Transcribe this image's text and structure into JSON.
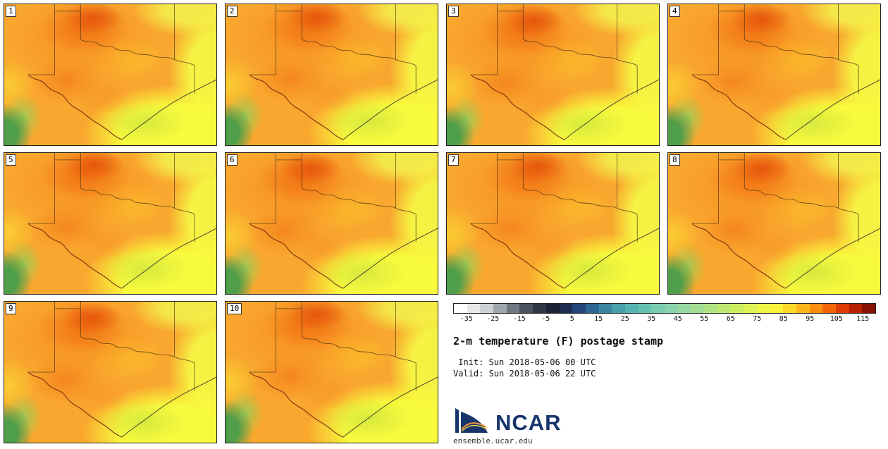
{
  "panels": [
    {
      "id": "1"
    },
    {
      "id": "2"
    },
    {
      "id": "3"
    },
    {
      "id": "4"
    },
    {
      "id": "5"
    },
    {
      "id": "6"
    },
    {
      "id": "7"
    },
    {
      "id": "8"
    },
    {
      "id": "9"
    },
    {
      "id": "10"
    }
  ],
  "legend": {
    "title": "2-m temperature (F) postage stamp",
    "init_line": " Init: Sun 2018-05-06 00 UTC",
    "valid_line": "Valid: Sun 2018-05-06 22 UTC",
    "logo_text": "NCAR",
    "site": "ensemble.ucar.edu"
  },
  "chart_data": {
    "type": "heatmap",
    "title": "2-m temperature (F) postage stamp",
    "init": "Sun 2018-05-06 00 UTC",
    "valid": "Sun 2018-05-06 22 UTC",
    "ensemble_members": [
      1,
      2,
      3,
      4,
      5,
      6,
      7,
      8,
      9,
      10
    ],
    "layout": {
      "grid": "4 columns x 3 rows, members 1-10, legend lower right",
      "legend_position": "bottom-right"
    },
    "colorbar": {
      "units": "F",
      "min": -40,
      "max": 120,
      "step": 5,
      "tick_labels": [
        -35,
        -25,
        -15,
        -5,
        5,
        15,
        25,
        35,
        45,
        55,
        65,
        75,
        85,
        95,
        105,
        115
      ],
      "colors": [
        "#ffffff",
        "#e8e8e8",
        "#cdd1d4",
        "#9fa6ad",
        "#6e7883",
        "#49535f",
        "#2e3744",
        "#1a2233",
        "#1d2d52",
        "#24477c",
        "#2e6694",
        "#3a86a2",
        "#47a0aa",
        "#55b2ae",
        "#66c0b0",
        "#78ccb0",
        "#8ad2ac",
        "#97d8a2",
        "#a3dc92",
        "#b0e282",
        "#bee872",
        "#ceee62",
        "#dff256",
        "#eef648",
        "#fbf238",
        "#fdd92a",
        "#fcb61c",
        "#f98f10",
        "#f2650a",
        "#dd3b06",
        "#b52104",
        "#871204"
      ]
    },
    "field_summary": "2-m temperature ranging from ~55-65F (green, NW Mexico highlands, lower-left) through ~75-85F (orange, west Texas / panhandle) to ~75-80F (yellow, Gulf coast and east Texas)",
    "accent_colors": {
      "ncar_blue": "#17356b",
      "base_orange": "#f9a72e",
      "gulf_yellow": "#f8fa3d"
    }
  }
}
